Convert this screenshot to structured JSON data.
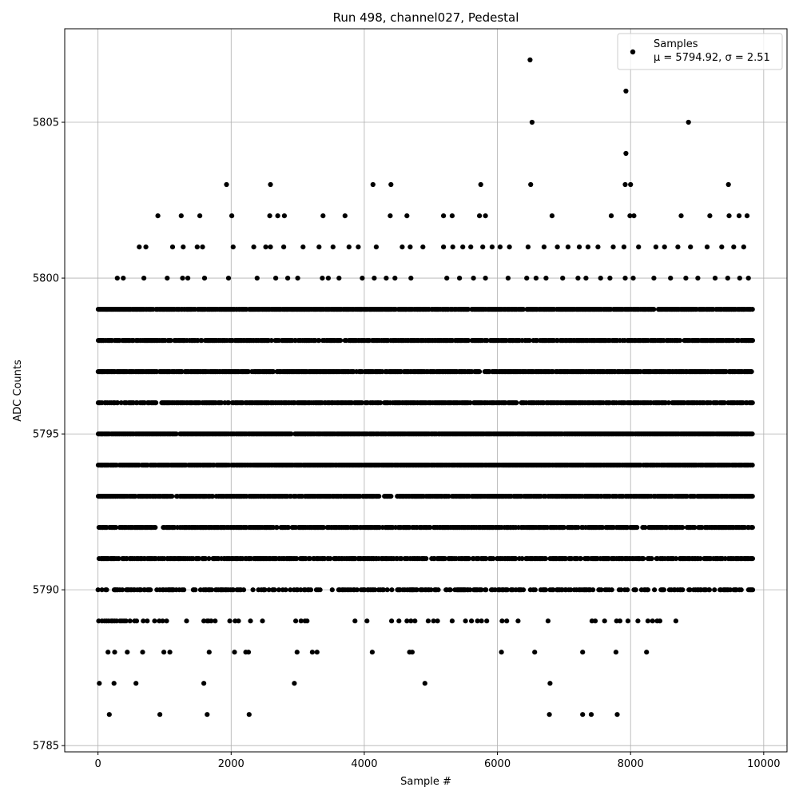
{
  "chart_data": {
    "type": "scatter",
    "title": "Run 498, channel027, Pedestal",
    "xlabel": "Sample #",
    "ylabel": "ADC Counts",
    "xlim": [
      -500,
      10350
    ],
    "ylim": [
      5784.8,
      5808.0
    ],
    "xticks": [
      0,
      2000,
      4000,
      6000,
      8000,
      10000
    ],
    "yticks": [
      5785,
      5790,
      5795,
      5800,
      5805
    ],
    "grid": true,
    "marker_color": "#000000",
    "legend": {
      "position": "top-right",
      "entries": [
        "Samples",
        "μ = 5794.92, σ = 2.51"
      ]
    },
    "series": [
      {
        "name": "Samples",
        "x_range": [
          0,
          9830
        ],
        "level_presence": [
          {
            "y": 5786,
            "x": [
              170,
              930,
              1640,
              2270,
              6780,
              7280,
              7410,
              7800
            ]
          },
          {
            "y": 5787,
            "x": [
              20,
              240,
              570,
              1590,
              2950,
              4910,
              6790
            ]
          },
          {
            "y": 5788,
            "x": [
              150,
              250,
              440,
              670,
              990,
              1080,
              1670,
              2050,
              2220,
              2260,
              2990,
              3220,
              3290,
              4120,
              4680,
              4720,
              6060,
              6560,
              7280,
              7780,
              8240
            ]
          },
          {
            "y": 5789,
            "x": [
              10,
              60,
              100,
              130,
              160,
              200,
              220,
              250,
              280,
              330,
              360,
              390,
              420,
              480,
              550,
              580,
              680,
              740,
              850,
              920,
              970,
              1030,
              1330,
              1590,
              1640,
              1660,
              1700,
              1760,
              1980,
              2060,
              2110,
              2290,
              2470,
              2970,
              3050,
              3110,
              3140,
              3860,
              4040,
              4410,
              4520,
              4640,
              4700,
              4760,
              4960,
              5040,
              5100,
              5320,
              5520,
              5610,
              5700,
              5760,
              5840,
              6070,
              6140,
              6310,
              6760,
              7420,
              7470,
              7610,
              7790,
              7840,
              7960,
              8110,
              8260,
              8330,
              8400,
              8440,
              8680
            ]
          }
        ],
        "dense_levels": [
          5789,
          5790,
          5791,
          5792,
          5793,
          5794,
          5795,
          5796,
          5797,
          5798,
          5799
        ],
        "sparse_levels": [
          {
            "y": 5800,
            "x": [
              290,
              380,
              690,
              1040,
              1270,
              1350,
              1600,
              1960,
              2390,
              2670,
              2850,
              3000,
              3370,
              3460,
              3620,
              3970,
              4150,
              4330,
              4460,
              4700,
              5240,
              5430,
              5640,
              5820,
              6160,
              6440,
              6580,
              6730,
              6980,
              7210,
              7330,
              7550,
              7690,
              7920,
              8040,
              8350,
              8600,
              8830,
              9010,
              9270,
              9460,
              9640,
              9770
            ]
          },
          {
            "y": 5801,
            "x": [
              620,
              720,
              1120,
              1280,
              1490,
              1570,
              2030,
              2340,
              2520,
              2590,
              2790,
              3080,
              3320,
              3530,
              3770,
              3910,
              4180,
              4570,
              4690,
              4880,
              5190,
              5330,
              5480,
              5600,
              5780,
              5920,
              6040,
              6180,
              6460,
              6700,
              6900,
              7060,
              7230,
              7360,
              7510,
              7740,
              7900,
              8120,
              8380,
              8510,
              8710,
              8900,
              9150,
              9370,
              9550,
              9700
            ]
          },
          {
            "y": 5802,
            "x": [
              900,
              1250,
              1530,
              2010,
              2580,
              2700,
              2800,
              3380,
              3710,
              4390,
              4640,
              5190,
              5320,
              5730,
              5820,
              6820,
              7710,
              7990,
              8050,
              8760,
              9190,
              9480,
              9630,
              9750
            ]
          },
          {
            "y": 5803,
            "x": [
              1930,
              2590,
              4130,
              4400,
              5750,
              6500,
              7920,
              8000,
              9470
            ]
          },
          {
            "y": 5804,
            "x": [
              7930
            ]
          },
          {
            "y": 5805,
            "x": [
              6520,
              8870
            ]
          },
          {
            "y": 5806,
            "x": [
              7930
            ]
          },
          {
            "y": 5807,
            "x": [
              6490
            ]
          }
        ]
      }
    ]
  }
}
